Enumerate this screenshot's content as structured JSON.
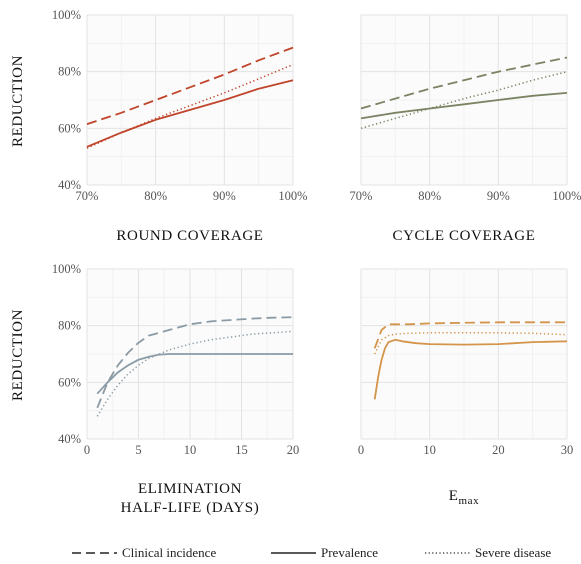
{
  "y_axis_label": "REDUCTION",
  "legend": [
    {
      "label": "Clinical incidence",
      "dash": "dashed"
    },
    {
      "label": "Prevalence",
      "dash": "solid"
    },
    {
      "label": "Severe disease",
      "dash": "dotted"
    }
  ],
  "chart_data": [
    {
      "type": "line",
      "panel": "top-left",
      "xlabel": "ROUND COVERAGE",
      "ylabel": "REDUCTION",
      "xlim": [
        70,
        100
      ],
      "ylim": [
        40,
        100
      ],
      "x_ticks": [
        70,
        80,
        90,
        100
      ],
      "x_tick_labels": [
        "70%",
        "80%",
        "90%",
        "100%"
      ],
      "y_ticks": [
        40,
        60,
        80,
        100
      ],
      "y_tick_labels": [
        "40%",
        "60%",
        "80%",
        "100%"
      ],
      "grid": true,
      "color": "#c0452b",
      "series": [
        {
          "name": "Clinical incidence",
          "dash": "dashed",
          "x": [
            70,
            75,
            80,
            85,
            90,
            95,
            100
          ],
          "y": [
            61.5,
            65.5,
            70,
            74.5,
            79,
            84,
            88.5
          ]
        },
        {
          "name": "Prevalence",
          "dash": "solid",
          "x": [
            70,
            75,
            80,
            85,
            90,
            95,
            100
          ],
          "y": [
            53.5,
            58.5,
            63,
            66.5,
            70,
            74,
            77
          ]
        },
        {
          "name": "Severe disease",
          "dash": "dotted",
          "x": [
            70,
            75,
            80,
            85,
            90,
            95,
            100
          ],
          "y": [
            53,
            58.5,
            63.5,
            68,
            72.5,
            77.5,
            82.5
          ]
        }
      ]
    },
    {
      "type": "line",
      "panel": "top-right",
      "xlabel": "CYCLE COVERAGE",
      "ylabel": "",
      "xlim": [
        70,
        100
      ],
      "ylim": [
        40,
        100
      ],
      "x_ticks": [
        70,
        80,
        90,
        100
      ],
      "x_tick_labels": [
        "70%",
        "80%",
        "90%",
        "100%"
      ],
      "y_ticks": [
        40,
        60,
        80,
        100
      ],
      "y_tick_labels": [],
      "grid": true,
      "color": "#7a8463",
      "series": [
        {
          "name": "Clinical incidence",
          "dash": "dashed",
          "x": [
            70,
            75,
            80,
            85,
            90,
            95,
            100
          ],
          "y": [
            67,
            70.5,
            74,
            77,
            80,
            82.5,
            85
          ]
        },
        {
          "name": "Prevalence",
          "dash": "solid",
          "x": [
            70,
            75,
            80,
            85,
            90,
            95,
            100
          ],
          "y": [
            63.5,
            65.5,
            67,
            68.5,
            70,
            71.5,
            72.5
          ]
        },
        {
          "name": "Severe disease",
          "dash": "dotted",
          "x": [
            70,
            75,
            80,
            85,
            90,
            95,
            100
          ],
          "y": [
            60,
            63.5,
            67,
            70.5,
            73.5,
            77,
            80
          ]
        }
      ]
    },
    {
      "type": "line",
      "panel": "bottom-left",
      "xlabel": "ELIMINATION\nHALF-LIFE (DAYS)",
      "xlabel_lines": [
        "ELIMINATION",
        "HALF-LIFE (DAYS)"
      ],
      "ylabel": "REDUCTION",
      "xlim": [
        0,
        20
      ],
      "ylim": [
        40,
        100
      ],
      "x_ticks": [
        0,
        5,
        10,
        15,
        20
      ],
      "x_tick_labels": [
        "0",
        "5",
        "10",
        "15",
        "20"
      ],
      "y_ticks": [
        40,
        60,
        80,
        100
      ],
      "y_tick_labels": [
        "40%",
        "60%",
        "80%",
        "100%"
      ],
      "grid": true,
      "color": "#8a9ba6",
      "series": [
        {
          "name": "Clinical incidence",
          "dash": "dashed",
          "x": [
            1,
            2,
            3,
            4,
            5,
            6,
            8,
            10,
            12,
            14,
            16,
            18,
            20
          ],
          "y": [
            51,
            60,
            66,
            70.5,
            74,
            76.5,
            78.5,
            80.5,
            81.5,
            82,
            82.5,
            82.8,
            83
          ]
        },
        {
          "name": "Prevalence",
          "dash": "solid",
          "x": [
            1,
            2,
            3,
            4,
            5,
            6,
            7,
            8,
            10,
            12,
            15,
            18,
            20
          ],
          "y": [
            56,
            60,
            63.5,
            66,
            68,
            69,
            69.8,
            70,
            70,
            70,
            70,
            70,
            70
          ]
        },
        {
          "name": "Severe disease",
          "dash": "dotted",
          "x": [
            1,
            2,
            3,
            4,
            5,
            6,
            8,
            10,
            12,
            14,
            16,
            18,
            20
          ],
          "y": [
            48,
            54,
            59,
            63,
            66,
            68.5,
            71.5,
            73.5,
            75,
            76,
            77,
            77.5,
            78
          ]
        }
      ]
    },
    {
      "type": "line",
      "panel": "bottom-right",
      "xlabel": "Emax",
      "xlabel_main": "E",
      "xlabel_sub": "max",
      "ylabel": "",
      "xlim": [
        0,
        30
      ],
      "ylim": [
        40,
        100
      ],
      "x_ticks": [
        0,
        10,
        20,
        30
      ],
      "x_tick_labels": [
        "0",
        "10",
        "20",
        "30"
      ],
      "y_ticks": [
        40,
        60,
        80,
        100
      ],
      "y_tick_labels": [],
      "grid": true,
      "color": "#d4954a",
      "series": [
        {
          "name": "Clinical incidence",
          "dash": "dashed",
          "x": [
            2,
            3,
            4,
            5,
            7,
            10,
            15,
            20,
            25,
            30
          ],
          "y": [
            72,
            78.5,
            80.5,
            80.5,
            80.5,
            80.8,
            81,
            81.2,
            81.2,
            81.2
          ]
        },
        {
          "name": "Prevalence",
          "dash": "solid",
          "x": [
            2,
            2.5,
            3,
            3.5,
            4,
            5,
            6,
            8,
            10,
            15,
            20,
            25,
            30
          ],
          "y": [
            54,
            62,
            68,
            72,
            74.2,
            75,
            74.5,
            73.8,
            73.5,
            73.3,
            73.5,
            74.2,
            74.5
          ]
        },
        {
          "name": "Severe disease",
          "dash": "dotted",
          "x": [
            2,
            3,
            4,
            5,
            7,
            10,
            15,
            20,
            25,
            30
          ],
          "y": [
            70,
            75,
            76.5,
            77,
            77.3,
            77.5,
            77.5,
            77.5,
            77.3,
            76.8
          ]
        }
      ]
    }
  ]
}
